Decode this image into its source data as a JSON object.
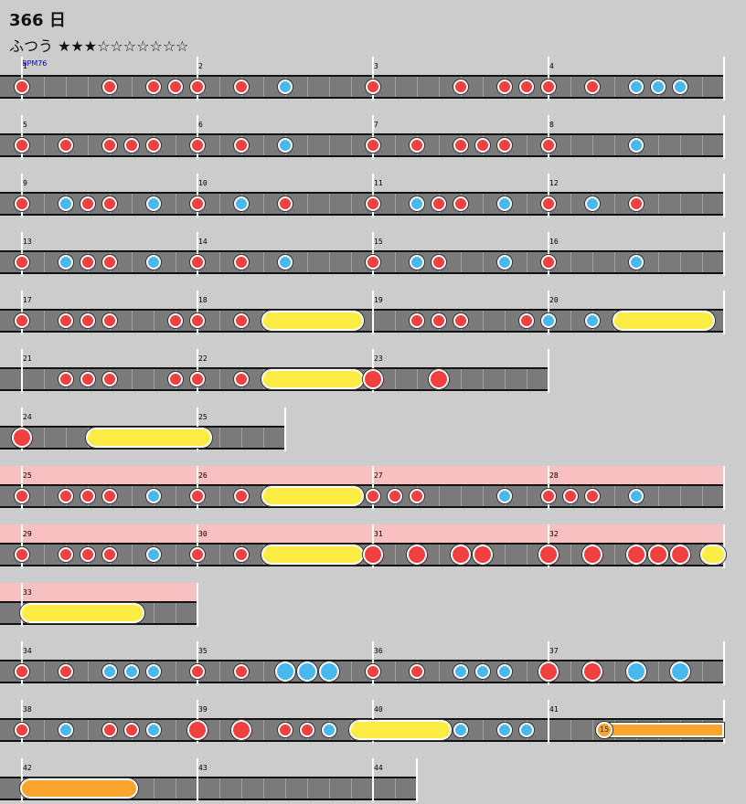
{
  "header": {
    "title": "366 日",
    "difficulty": "ふつう ★★★☆☆☆☆☆☆☆",
    "bpm": "BPM76"
  },
  "colors": {
    "background": "#cccccc",
    "lane": "#7a7a7a",
    "don": "#f04040",
    "ka": "#4ab8f0",
    "drumroll": "#fcec44",
    "balloon": "#fba52e",
    "gogo": "#f8c0c0"
  },
  "chart_data": {
    "type": "taiko-notechart",
    "measures_per_row": 4,
    "beats_per_measure": 4,
    "rows": [
      {
        "start": 1,
        "measures": 4,
        "gogo": false,
        "notes": [
          {
            "m": 0,
            "b": 0,
            "t": "don"
          },
          {
            "m": 0,
            "b": 2,
            "t": "don"
          },
          {
            "m": 0,
            "b": 3,
            "t": "don"
          },
          {
            "m": 0,
            "b": 3.5,
            "t": "don"
          },
          {
            "m": 1,
            "b": 0,
            "t": "don"
          },
          {
            "m": 1,
            "b": 1,
            "t": "don"
          },
          {
            "m": 1,
            "b": 2,
            "t": "ka"
          },
          {
            "m": 2,
            "b": 0,
            "t": "don"
          },
          {
            "m": 2,
            "b": 2,
            "t": "don"
          },
          {
            "m": 2,
            "b": 3,
            "t": "don"
          },
          {
            "m": 2,
            "b": 3.5,
            "t": "don"
          },
          {
            "m": 3,
            "b": 0,
            "t": "don"
          },
          {
            "m": 3,
            "b": 1,
            "t": "don"
          },
          {
            "m": 3,
            "b": 2,
            "t": "ka"
          },
          {
            "m": 3,
            "b": 2.5,
            "t": "ka"
          },
          {
            "m": 3,
            "b": 3,
            "t": "ka"
          }
        ]
      },
      {
        "start": 5,
        "measures": 4,
        "gogo": false,
        "notes": [
          {
            "m": 0,
            "b": 0,
            "t": "don"
          },
          {
            "m": 0,
            "b": 1,
            "t": "don"
          },
          {
            "m": 0,
            "b": 2,
            "t": "don"
          },
          {
            "m": 0,
            "b": 2.5,
            "t": "don"
          },
          {
            "m": 0,
            "b": 3,
            "t": "don"
          },
          {
            "m": 1,
            "b": 0,
            "t": "don"
          },
          {
            "m": 1,
            "b": 1,
            "t": "don"
          },
          {
            "m": 1,
            "b": 2,
            "t": "ka"
          },
          {
            "m": 2,
            "b": 0,
            "t": "don"
          },
          {
            "m": 2,
            "b": 1,
            "t": "don"
          },
          {
            "m": 2,
            "b": 2,
            "t": "don"
          },
          {
            "m": 2,
            "b": 2.5,
            "t": "don"
          },
          {
            "m": 2,
            "b": 3,
            "t": "don"
          },
          {
            "m": 3,
            "b": 0,
            "t": "don"
          },
          {
            "m": 3,
            "b": 2,
            "t": "ka"
          }
        ]
      },
      {
        "start": 9,
        "measures": 4,
        "gogo": false,
        "notes": [
          {
            "m": 0,
            "b": 0,
            "t": "don"
          },
          {
            "m": 0,
            "b": 1,
            "t": "ka"
          },
          {
            "m": 0,
            "b": 1.5,
            "t": "don"
          },
          {
            "m": 0,
            "b": 2,
            "t": "don"
          },
          {
            "m": 0,
            "b": 3,
            "t": "ka"
          },
          {
            "m": 1,
            "b": 0,
            "t": "don"
          },
          {
            "m": 1,
            "b": 1,
            "t": "ka"
          },
          {
            "m": 1,
            "b": 2,
            "t": "don"
          },
          {
            "m": 2,
            "b": 0,
            "t": "don"
          },
          {
            "m": 2,
            "b": 1,
            "t": "ka"
          },
          {
            "m": 2,
            "b": 1.5,
            "t": "don"
          },
          {
            "m": 2,
            "b": 2,
            "t": "don"
          },
          {
            "m": 2,
            "b": 3,
            "t": "ka"
          },
          {
            "m": 3,
            "b": 0,
            "t": "don"
          },
          {
            "m": 3,
            "b": 1,
            "t": "ka"
          },
          {
            "m": 3,
            "b": 2,
            "t": "don"
          }
        ]
      },
      {
        "start": 13,
        "measures": 4,
        "gogo": false,
        "notes": [
          {
            "m": 0,
            "b": 0,
            "t": "don"
          },
          {
            "m": 0,
            "b": 1,
            "t": "ka"
          },
          {
            "m": 0,
            "b": 1.5,
            "t": "don"
          },
          {
            "m": 0,
            "b": 2,
            "t": "don"
          },
          {
            "m": 0,
            "b": 3,
            "t": "ka"
          },
          {
            "m": 1,
            "b": 0,
            "t": "don"
          },
          {
            "m": 1,
            "b": 1,
            "t": "don"
          },
          {
            "m": 1,
            "b": 2,
            "t": "ka"
          },
          {
            "m": 2,
            "b": 0,
            "t": "don"
          },
          {
            "m": 2,
            "b": 1,
            "t": "ka"
          },
          {
            "m": 2,
            "b": 1.5,
            "t": "don"
          },
          {
            "m": 2,
            "b": 3,
            "t": "ka"
          },
          {
            "m": 3,
            "b": 0,
            "t": "don"
          },
          {
            "m": 3,
            "b": 2,
            "t": "ka"
          }
        ]
      },
      {
        "start": 17,
        "measures": 4,
        "gogo": false,
        "notes": [
          {
            "m": 0,
            "b": 0,
            "t": "don"
          },
          {
            "m": 0,
            "b": 1,
            "t": "don"
          },
          {
            "m": 0,
            "b": 1.5,
            "t": "don"
          },
          {
            "m": 0,
            "b": 2,
            "t": "don"
          },
          {
            "m": 0,
            "b": 3.5,
            "t": "don"
          },
          {
            "m": 1,
            "b": 0,
            "t": "don"
          },
          {
            "m": 1,
            "b": 1,
            "t": "don"
          },
          {
            "m": 1,
            "b": 1.5,
            "t": "roll",
            "end": 3.75
          },
          {
            "m": 2,
            "b": 1,
            "t": "don"
          },
          {
            "m": 2,
            "b": 1.5,
            "t": "don"
          },
          {
            "m": 2,
            "b": 2,
            "t": "don"
          },
          {
            "m": 2,
            "b": 3.5,
            "t": "don"
          },
          {
            "m": 3,
            "b": 0,
            "t": "ka"
          },
          {
            "m": 3,
            "b": 1,
            "t": "ka"
          },
          {
            "m": 3,
            "b": 1.5,
            "t": "roll",
            "end": 3.75
          }
        ]
      },
      {
        "start": 21,
        "measures": 3,
        "gogo": false,
        "notes": [
          {
            "m": 0,
            "b": 1,
            "t": "don"
          },
          {
            "m": 0,
            "b": 1.5,
            "t": "don"
          },
          {
            "m": 0,
            "b": 2,
            "t": "don"
          },
          {
            "m": 0,
            "b": 3.5,
            "t": "don"
          },
          {
            "m": 1,
            "b": 0,
            "t": "don"
          },
          {
            "m": 1,
            "b": 1,
            "t": "don"
          },
          {
            "m": 1,
            "b": 1.5,
            "t": "roll",
            "end": 3.75
          },
          {
            "m": 2,
            "b": 0,
            "t": "DON"
          },
          {
            "m": 2,
            "b": 1.5,
            "t": "DON"
          }
        ]
      },
      {
        "start": 24,
        "measures": 1.5,
        "gogo": false,
        "notes": [
          {
            "m": 0,
            "b": 0,
            "t": "DON"
          },
          {
            "m": 0,
            "b": 1.5,
            "t": "roll",
            "end": 4.3
          }
        ]
      },
      {
        "start": 25,
        "measures": 4,
        "gogo": true,
        "notes": [
          {
            "m": 0,
            "b": 0,
            "t": "don"
          },
          {
            "m": 0,
            "b": 1,
            "t": "don"
          },
          {
            "m": 0,
            "b": 1.5,
            "t": "don"
          },
          {
            "m": 0,
            "b": 2,
            "t": "don"
          },
          {
            "m": 0,
            "b": 3,
            "t": "ka"
          },
          {
            "m": 1,
            "b": 0,
            "t": "don"
          },
          {
            "m": 1,
            "b": 1,
            "t": "don"
          },
          {
            "m": 1,
            "b": 1.5,
            "t": "roll",
            "end": 3.75
          },
          {
            "m": 2,
            "b": 0,
            "t": "don"
          },
          {
            "m": 2,
            "b": 0.5,
            "t": "don"
          },
          {
            "m": 2,
            "b": 1,
            "t": "don"
          },
          {
            "m": 2,
            "b": 3,
            "t": "ka"
          },
          {
            "m": 3,
            "b": 0,
            "t": "don"
          },
          {
            "m": 3,
            "b": 0.5,
            "t": "don"
          },
          {
            "m": 3,
            "b": 1,
            "t": "don"
          },
          {
            "m": 3,
            "b": 2,
            "t": "ka"
          }
        ]
      },
      {
        "start": 29,
        "measures": 4,
        "gogo": true,
        "notes": [
          {
            "m": 0,
            "b": 0,
            "t": "don"
          },
          {
            "m": 0,
            "b": 1,
            "t": "don"
          },
          {
            "m": 0,
            "b": 1.5,
            "t": "don"
          },
          {
            "m": 0,
            "b": 2,
            "t": "don"
          },
          {
            "m": 0,
            "b": 3,
            "t": "ka"
          },
          {
            "m": 1,
            "b": 0,
            "t": "don"
          },
          {
            "m": 1,
            "b": 1,
            "t": "don"
          },
          {
            "m": 1,
            "b": 1.5,
            "t": "roll",
            "end": 3.75
          },
          {
            "m": 2,
            "b": 0,
            "t": "DON"
          },
          {
            "m": 2,
            "b": 1,
            "t": "DON"
          },
          {
            "m": 2,
            "b": 2,
            "t": "DON"
          },
          {
            "m": 2,
            "b": 2.5,
            "t": "DON"
          },
          {
            "m": 3,
            "b": 0,
            "t": "DON"
          },
          {
            "m": 3,
            "b": 1,
            "t": "DON"
          },
          {
            "m": 3,
            "b": 2,
            "t": "DON"
          },
          {
            "m": 3,
            "b": 2.5,
            "t": "DON"
          },
          {
            "m": 3,
            "b": 3,
            "t": "DON"
          },
          {
            "m": 3,
            "b": 3.5,
            "t": "roll",
            "end": 4.0
          }
        ]
      },
      {
        "start": 33,
        "measures": 1,
        "gogo": true,
        "notes": [
          {
            "m": 0,
            "b": 0,
            "t": "roll",
            "end": 2.75
          }
        ]
      },
      {
        "start": 34,
        "measures": 4,
        "gogo": false,
        "notes": [
          {
            "m": 0,
            "b": 0,
            "t": "don"
          },
          {
            "m": 0,
            "b": 1,
            "t": "don"
          },
          {
            "m": 0,
            "b": 2,
            "t": "ka"
          },
          {
            "m": 0,
            "b": 2.5,
            "t": "ka"
          },
          {
            "m": 0,
            "b": 3,
            "t": "ka"
          },
          {
            "m": 1,
            "b": 0,
            "t": "don"
          },
          {
            "m": 1,
            "b": 1,
            "t": "don"
          },
          {
            "m": 1,
            "b": 2,
            "t": "KA"
          },
          {
            "m": 1,
            "b": 2.5,
            "t": "KA"
          },
          {
            "m": 1,
            "b": 3,
            "t": "KA"
          },
          {
            "m": 2,
            "b": 0,
            "t": "don"
          },
          {
            "m": 2,
            "b": 1,
            "t": "don"
          },
          {
            "m": 2,
            "b": 2,
            "t": "ka"
          },
          {
            "m": 2,
            "b": 2.5,
            "t": "ka"
          },
          {
            "m": 2,
            "b": 3,
            "t": "ka"
          },
          {
            "m": 3,
            "b": 0,
            "t": "DON"
          },
          {
            "m": 3,
            "b": 1,
            "t": "DON"
          },
          {
            "m": 3,
            "b": 2,
            "t": "KA"
          },
          {
            "m": 3,
            "b": 3,
            "t": "KA"
          }
        ]
      },
      {
        "start": 38,
        "measures": 4,
        "gogo": false,
        "notes": [
          {
            "m": 0,
            "b": 0,
            "t": "don"
          },
          {
            "m": 0,
            "b": 1,
            "t": "ka"
          },
          {
            "m": 0,
            "b": 2,
            "t": "don"
          },
          {
            "m": 0,
            "b": 2.5,
            "t": "don"
          },
          {
            "m": 0,
            "b": 3,
            "t": "ka"
          },
          {
            "m": 1,
            "b": 0,
            "t": "DON"
          },
          {
            "m": 1,
            "b": 1,
            "t": "DON"
          },
          {
            "m": 1,
            "b": 2,
            "t": "don"
          },
          {
            "m": 1,
            "b": 2.5,
            "t": "don"
          },
          {
            "m": 1,
            "b": 3,
            "t": "ka"
          },
          {
            "m": 1,
            "b": 3.5,
            "t": "roll",
            "end": 5.75
          },
          {
            "m": 2,
            "b": 2,
            "t": "ka"
          },
          {
            "m": 2,
            "b": 3,
            "t": "ka"
          },
          {
            "m": 2,
            "b": 3.5,
            "t": "ka"
          },
          {
            "m": 3,
            "b": 1.25,
            "t": "balloon",
            "end": 4.0,
            "count": "15"
          }
        ]
      },
      {
        "start": 42,
        "measures": 2.25,
        "gogo": false,
        "notes": [
          {
            "m": 0,
            "b": 0,
            "t": "balloonroll",
            "end": 2.6
          }
        ]
      }
    ]
  }
}
